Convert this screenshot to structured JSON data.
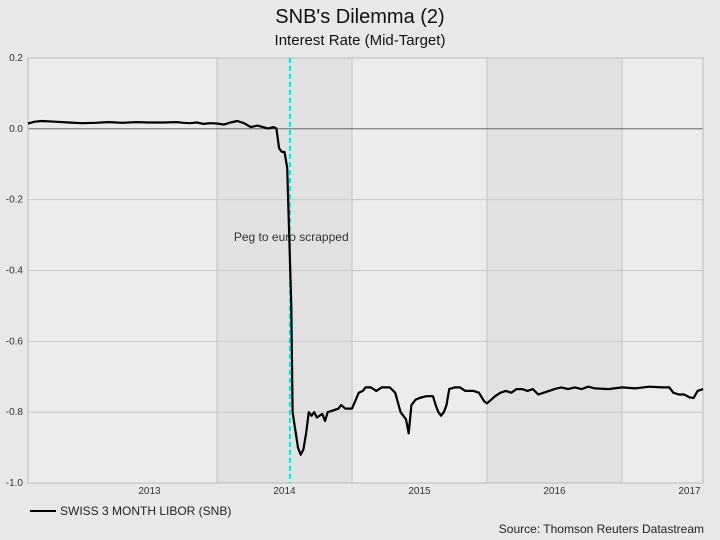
{
  "chart_data": {
    "type": "line",
    "title": "SNB's Dilemma (2)",
    "subtitle": "Interest Rate (Mid-Target)",
    "ylim": [
      -1.0,
      0.2
    ],
    "y_ticks": [
      "0.2",
      "0.0",
      "-0.2",
      "-0.4",
      "-0.6",
      "-0.8",
      "-1.0"
    ],
    "y_tick_values": [
      0.2,
      0.0,
      -0.2,
      -0.4,
      -0.6,
      -0.8,
      -1.0
    ],
    "xlim": [
      2012.6,
      2017.6
    ],
    "x_ticks": [
      "2013",
      "2014",
      "2015",
      "2016",
      "2017"
    ],
    "x_tick_positions": [
      2013.5,
      2014.5,
      2015.5,
      2016.5,
      2017.5
    ],
    "year_boundaries": [
      2014.0,
      2015.0,
      2016.0,
      2017.0
    ],
    "grid": true,
    "series": [
      {
        "name": "SWISS 3 MONTH LIBOR (SNB)",
        "color": "#000000",
        "points": [
          [
            2012.6,
            0.015
          ],
          [
            2012.65,
            0.02
          ],
          [
            2012.7,
            0.022
          ],
          [
            2012.8,
            0.02
          ],
          [
            2012.9,
            0.018
          ],
          [
            2013.0,
            0.016
          ],
          [
            2013.1,
            0.017
          ],
          [
            2013.2,
            0.019
          ],
          [
            2013.3,
            0.017
          ],
          [
            2013.4,
            0.019
          ],
          [
            2013.5,
            0.018
          ],
          [
            2013.6,
            0.018
          ],
          [
            2013.7,
            0.019
          ],
          [
            2013.75,
            0.017
          ],
          [
            2013.8,
            0.016
          ],
          [
            2013.85,
            0.018
          ],
          [
            2013.9,
            0.014
          ],
          [
            2013.95,
            0.016
          ],
          [
            2014.0,
            0.015
          ],
          [
            2014.05,
            0.012
          ],
          [
            2014.1,
            0.018
          ],
          [
            2014.15,
            0.022
          ],
          [
            2014.2,
            0.016
          ],
          [
            2014.25,
            0.005
          ],
          [
            2014.3,
            0.009
          ],
          [
            2014.35,
            0.004
          ],
          [
            2014.38,
            0.001
          ],
          [
            2014.42,
            0.005
          ],
          [
            2014.44,
            0.001
          ],
          [
            2014.46,
            -0.055
          ],
          [
            2014.48,
            -0.065
          ],
          [
            2014.5,
            -0.065
          ],
          [
            2014.52,
            -0.11
          ],
          [
            2014.55,
            -0.5
          ],
          [
            2014.56,
            -0.8
          ],
          [
            2014.58,
            -0.85
          ],
          [
            2014.6,
            -0.9
          ],
          [
            2014.62,
            -0.92
          ],
          [
            2014.64,
            -0.905
          ],
          [
            2014.66,
            -0.86
          ],
          [
            2014.68,
            -0.8
          ],
          [
            2014.7,
            -0.81
          ],
          [
            2014.72,
            -0.8
          ],
          [
            2014.74,
            -0.815
          ],
          [
            2014.76,
            -0.81
          ],
          [
            2014.78,
            -0.805
          ],
          [
            2014.8,
            -0.825
          ],
          [
            2014.82,
            -0.8
          ],
          [
            2014.86,
            -0.795
          ],
          [
            2014.9,
            -0.79
          ],
          [
            2014.92,
            -0.78
          ],
          [
            2014.95,
            -0.79
          ],
          [
            2015.0,
            -0.79
          ],
          [
            2015.05,
            -0.745
          ],
          [
            2015.08,
            -0.74
          ],
          [
            2015.1,
            -0.73
          ],
          [
            2015.14,
            -0.73
          ],
          [
            2015.18,
            -0.74
          ],
          [
            2015.22,
            -0.73
          ],
          [
            2015.28,
            -0.73
          ],
          [
            2015.32,
            -0.745
          ],
          [
            2015.36,
            -0.8
          ],
          [
            2015.4,
            -0.82
          ],
          [
            2015.42,
            -0.86
          ],
          [
            2015.44,
            -0.78
          ],
          [
            2015.47,
            -0.765
          ],
          [
            2015.5,
            -0.76
          ],
          [
            2015.55,
            -0.755
          ],
          [
            2015.6,
            -0.755
          ],
          [
            2015.62,
            -0.78
          ],
          [
            2015.64,
            -0.8
          ],
          [
            2015.66,
            -0.81
          ],
          [
            2015.68,
            -0.8
          ],
          [
            2015.7,
            -0.78
          ],
          [
            2015.72,
            -0.735
          ],
          [
            2015.76,
            -0.73
          ],
          [
            2015.8,
            -0.73
          ],
          [
            2015.84,
            -0.74
          ],
          [
            2015.9,
            -0.74
          ],
          [
            2015.94,
            -0.745
          ],
          [
            2015.98,
            -0.77
          ],
          [
            2016.0,
            -0.775
          ],
          [
            2016.03,
            -0.765
          ],
          [
            2016.06,
            -0.755
          ],
          [
            2016.1,
            -0.745
          ],
          [
            2016.14,
            -0.74
          ],
          [
            2016.18,
            -0.745
          ],
          [
            2016.22,
            -0.735
          ],
          [
            2016.26,
            -0.735
          ],
          [
            2016.3,
            -0.74
          ],
          [
            2016.34,
            -0.735
          ],
          [
            2016.38,
            -0.75
          ],
          [
            2016.42,
            -0.745
          ],
          [
            2016.46,
            -0.74
          ],
          [
            2016.5,
            -0.735
          ],
          [
            2016.55,
            -0.73
          ],
          [
            2016.6,
            -0.735
          ],
          [
            2016.65,
            -0.73
          ],
          [
            2016.7,
            -0.735
          ],
          [
            2016.75,
            -0.728
          ],
          [
            2016.8,
            -0.733
          ],
          [
            2016.9,
            -0.735
          ],
          [
            2017.0,
            -0.73
          ],
          [
            2017.1,
            -0.733
          ],
          [
            2017.2,
            -0.728
          ],
          [
            2017.3,
            -0.73
          ],
          [
            2017.35,
            -0.73
          ],
          [
            2017.38,
            -0.745
          ],
          [
            2017.42,
            -0.75
          ],
          [
            2017.46,
            -0.75
          ],
          [
            2017.5,
            -0.758
          ],
          [
            2017.53,
            -0.76
          ],
          [
            2017.56,
            -0.74
          ],
          [
            2017.6,
            -0.735
          ]
        ]
      }
    ],
    "vline": {
      "x": 2014.54,
      "color": "#00e5ee",
      "style": "dashed"
    },
    "annotation": {
      "text": "Peg to euro scrapped",
      "x": 2014.55,
      "y": -0.305
    },
    "legend_position": "bottom-left",
    "source": "Source: Thomson Reuters Datastream"
  }
}
